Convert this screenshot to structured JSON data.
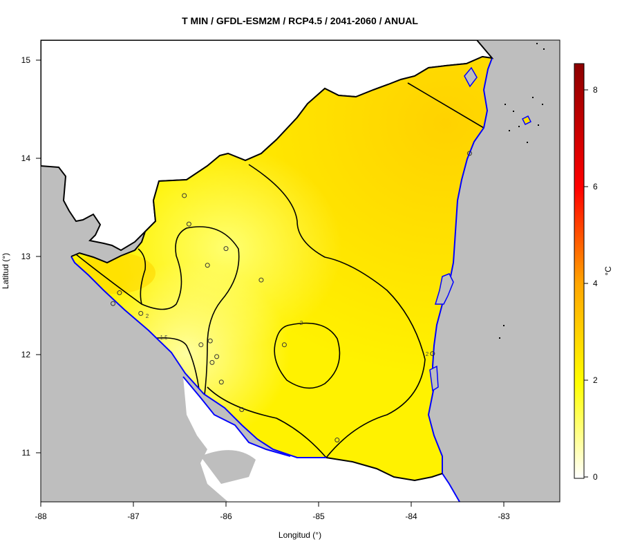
{
  "title": "T MIN / GFDL-ESM2M / RCP4.5 / 2041-2060 / ANUAL",
  "axes": {
    "x_label": "Longitud (°)",
    "y_label": "Latitud (°)",
    "x_ticks": [
      "-88",
      "-87",
      "-86",
      "-85",
      "-84",
      "-83"
    ],
    "y_ticks": [
      "11",
      "12",
      "13",
      "14",
      "15"
    ],
    "xlim": [
      -88,
      -82.4
    ],
    "ylim": [
      10.5,
      15.2
    ]
  },
  "colorbar": {
    "unit": "°C",
    "ticks": [
      "0",
      "2",
      "4",
      "6",
      "8"
    ],
    "range": [
      0,
      8.6
    ],
    "colors": [
      "#ffffff",
      "#ffff00",
      "#ffa500",
      "#ff0000",
      "#8b0000"
    ]
  },
  "contour_labels": [
    "2",
    "2",
    "1.5",
    "2"
  ],
  "colors": {
    "ocean": "#bebebe",
    "land_fill": "#ffdf00",
    "coast": "#0000ff",
    "border": "#000000"
  },
  "stations": [
    [
      -86.45,
      13.62
    ],
    [
      -86.4,
      13.33
    ],
    [
      -86.0,
      13.08
    ],
    [
      -86.2,
      12.91
    ],
    [
      -85.62,
      12.76
    ],
    [
      -87.15,
      12.63
    ],
    [
      -87.22,
      12.52
    ],
    [
      -86.92,
      12.42
    ],
    [
      -86.27,
      12.1
    ],
    [
      -86.17,
      12.14
    ],
    [
      -86.15,
      11.92
    ],
    [
      -86.1,
      11.98
    ],
    [
      -86.05,
      11.72
    ],
    [
      -85.83,
      11.44
    ],
    [
      -85.37,
      12.1
    ],
    [
      -84.8,
      11.13
    ],
    [
      -83.77,
      12.01
    ],
    [
      -83.37,
      14.05
    ]
  ]
}
